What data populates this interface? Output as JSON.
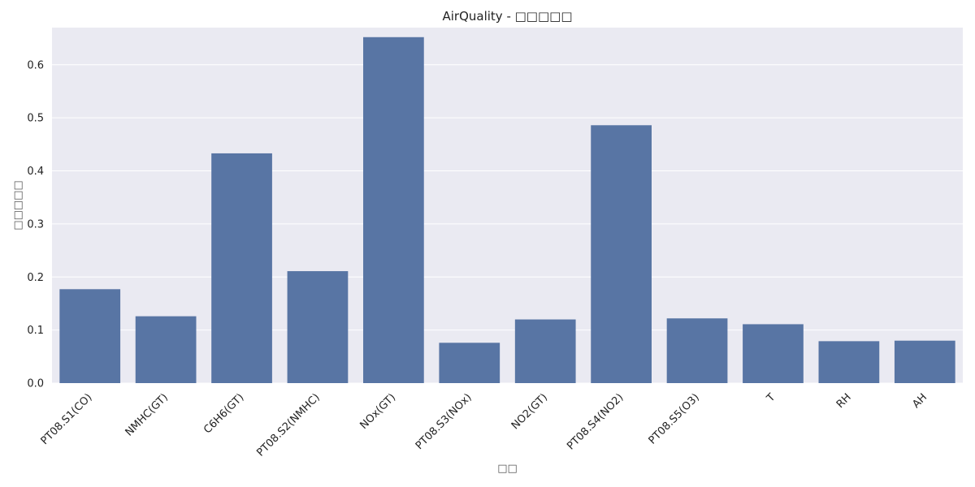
{
  "chart_data": {
    "type": "bar",
    "title": "AirQuality - □□□□□",
    "xlabel": "□□",
    "ylabel": "□□□□□",
    "categories": [
      "PT08.S1(CO)",
      "NMHC(GT)",
      "C6H6(GT)",
      "PT08.S2(NMHC)",
      "NOx(GT)",
      "PT08.S3(NOx)",
      "NO2(GT)",
      "PT08.S4(NO2)",
      "PT08.S5(O3)",
      "T",
      "RH",
      "AH"
    ],
    "values": [
      0.177,
      0.126,
      0.433,
      0.211,
      0.652,
      0.076,
      0.12,
      0.486,
      0.122,
      0.111,
      0.079,
      0.08
    ],
    "ylim": [
      0,
      0.67
    ],
    "yticks": [
      "0.0",
      "0.1",
      "0.2",
      "0.3",
      "0.4",
      "0.5",
      "0.6"
    ],
    "grid": true,
    "colors": {
      "bar": "#5875a4",
      "plot_bg": "#eaeaf2",
      "grid": "#ffffff"
    }
  }
}
